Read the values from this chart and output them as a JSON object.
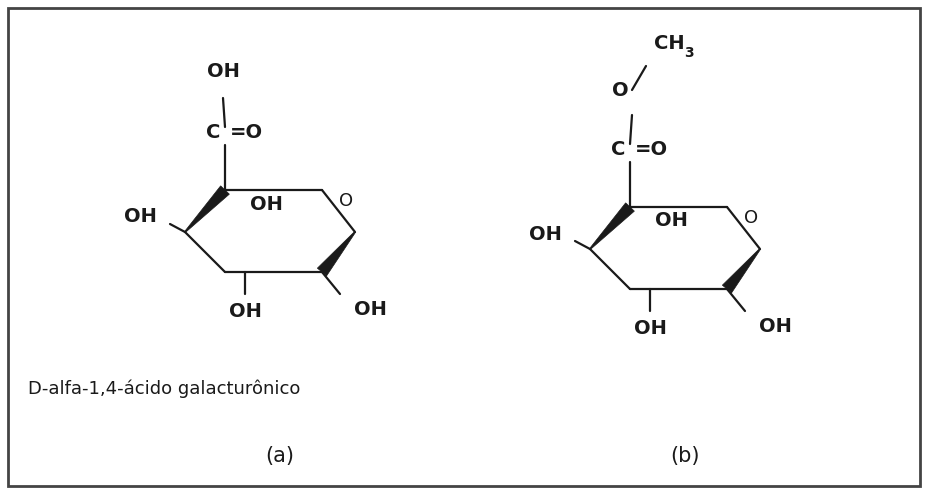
{
  "bg_color": "#ffffff",
  "border_color": "#444444",
  "line_color": "#1a1a1a",
  "text_color": "#1a1a1a",
  "figsize": [
    9.28,
    4.94
  ],
  "dpi": 100,
  "label_a": "(a)",
  "label_b": "(b)",
  "caption_a": "D-alfa-1,4-ácido galacturônico",
  "font_size_label": 15,
  "font_size_caption": 13,
  "font_size_chem": 13,
  "font_size_sub": 10
}
